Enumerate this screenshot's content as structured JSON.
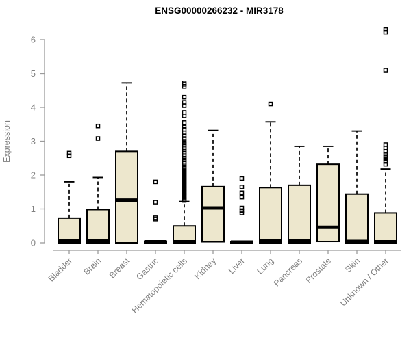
{
  "chart_data": {
    "type": "boxplot",
    "title": "ENSG00000266232 - MIR3178",
    "ylabel": "Expression",
    "xlabel": "",
    "ylim": [
      0,
      6
    ],
    "yticks": [
      0,
      1,
      2,
      3,
      4,
      5,
      6
    ],
    "grid": false,
    "legend": "none",
    "colors": {
      "box_fill": "#EDE7CD",
      "box_stroke": "#000000",
      "median": "#000000",
      "whisker": "#000000",
      "axis_line": "#9B9B9B",
      "tick_label": "#808080",
      "title": "#000000"
    },
    "categories": [
      "Bladder",
      "Brain",
      "Breast",
      "Gastric",
      "Hematopoietic cells",
      "Kidney",
      "Liver",
      "Lung",
      "Pancreas",
      "Prostate",
      "Skin",
      "Unknown / Other"
    ],
    "boxes": [
      {
        "label": "Bladder",
        "whisker_low": 0,
        "q1": 0,
        "median": 0.05,
        "q3": 0.73,
        "whisker_high": 1.8,
        "outliers": [
          2.57,
          2.65
        ]
      },
      {
        "label": "Brain",
        "whisker_low": 0,
        "q1": 0,
        "median": 0.05,
        "q3": 0.98,
        "whisker_high": 1.93,
        "outliers": [
          3.08,
          3.45
        ]
      },
      {
        "label": "Breast",
        "whisker_low": 0,
        "q1": 0,
        "median": 1.26,
        "q3": 2.7,
        "whisker_high": 4.72,
        "outliers": []
      },
      {
        "label": "Gastric",
        "whisker_low": 0,
        "q1": 0,
        "median": 0.03,
        "q3": 0.05,
        "whisker_high": 0.05,
        "outliers": [
          0.7,
          0.74,
          1.2,
          1.8
        ]
      },
      {
        "label": "Hematopoietic cells",
        "whisker_low": 0,
        "q1": 0,
        "median": 0.03,
        "q3": 0.5,
        "whisker_high": 1.22,
        "outliers": [
          1.25,
          1.28,
          1.32,
          1.36,
          1.4,
          1.44,
          1.48,
          1.52,
          1.56,
          1.6,
          1.64,
          1.68,
          1.72,
          1.76,
          1.8,
          1.84,
          1.88,
          1.92,
          1.96,
          2.0,
          2.04,
          2.08,
          2.12,
          2.16,
          2.2,
          2.25,
          2.3,
          2.35,
          2.4,
          2.45,
          2.5,
          2.55,
          2.6,
          2.65,
          2.7,
          2.75,
          2.8,
          2.85,
          2.9,
          2.95,
          3.0,
          3.08,
          3.16,
          3.25,
          3.35,
          3.42,
          3.55,
          3.75,
          3.85,
          4.05,
          4.15,
          4.3,
          4.62,
          4.68,
          4.72
        ]
      },
      {
        "label": "Kidney",
        "whisker_low": 0.03,
        "q1": 0.03,
        "median": 1.03,
        "q3": 1.66,
        "whisker_high": 3.32,
        "outliers": []
      },
      {
        "label": "Liver",
        "whisker_low": 0,
        "q1": 0,
        "median": 0.02,
        "q3": 0.04,
        "whisker_high": 0.04,
        "outliers": [
          0.88,
          0.95,
          1.03,
          1.35,
          1.48,
          1.65,
          1.9
        ]
      },
      {
        "label": "Lung",
        "whisker_low": 0,
        "q1": 0,
        "median": 0.05,
        "q3": 1.63,
        "whisker_high": 3.57,
        "outliers": [
          4.1
        ]
      },
      {
        "label": "Pancreas",
        "whisker_low": 0,
        "q1": 0,
        "median": 0.06,
        "q3": 1.7,
        "whisker_high": 2.85,
        "outliers": []
      },
      {
        "label": "Prostate",
        "whisker_low": 0.04,
        "q1": 0.04,
        "median": 0.46,
        "q3": 2.32,
        "whisker_high": 2.85,
        "outliers": []
      },
      {
        "label": "Skin",
        "whisker_low": 0,
        "q1": 0,
        "median": 0.04,
        "q3": 1.44,
        "whisker_high": 3.3,
        "outliers": []
      },
      {
        "label": "Unknown / Other",
        "whisker_low": 0,
        "q1": 0,
        "median": 0.03,
        "q3": 0.88,
        "whisker_high": 2.18,
        "outliers": [
          2.32,
          2.4,
          2.48,
          2.55,
          2.62,
          2.7,
          2.8,
          2.9,
          5.1,
          6.22,
          6.3
        ]
      }
    ]
  }
}
